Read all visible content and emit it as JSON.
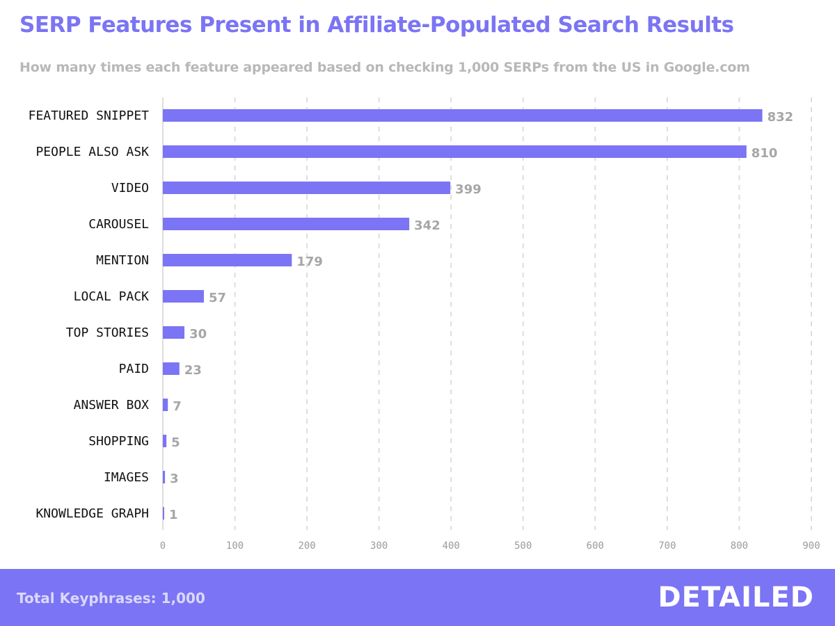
{
  "colors": {
    "accent": "#7b74f4",
    "subtitle": "#b8b8b8",
    "value_label": "#a6a6a6",
    "footer_bg": "#7b74f4",
    "grid": "#dddddd"
  },
  "chart_data": {
    "type": "bar",
    "orientation": "horizontal",
    "title": "SERP Features Present in Affiliate-Populated Search Results",
    "subtitle": "How many times each feature appeared based on checking 1,000 SERPs from the US in Google.com",
    "categories": [
      "FEATURED SNIPPET",
      "PEOPLE ALSO ASK",
      "VIDEO",
      "CAROUSEL",
      "MENTION",
      "LOCAL PACK",
      "TOP STORIES",
      "PAID",
      "ANSWER BOX",
      "SHOPPING",
      "IMAGES",
      "KNOWLEDGE GRAPH"
    ],
    "values": [
      832,
      810,
      399,
      342,
      179,
      57,
      30,
      23,
      7,
      5,
      3,
      1
    ],
    "xlim": [
      0,
      900
    ],
    "xticks": [
      0,
      100,
      200,
      300,
      400,
      500,
      600,
      700,
      800,
      900
    ],
    "grid": "vertical dashed",
    "legend": "none"
  },
  "footer": {
    "note": "Total Keyphrases: 1,000",
    "brand": "DETAILED"
  }
}
